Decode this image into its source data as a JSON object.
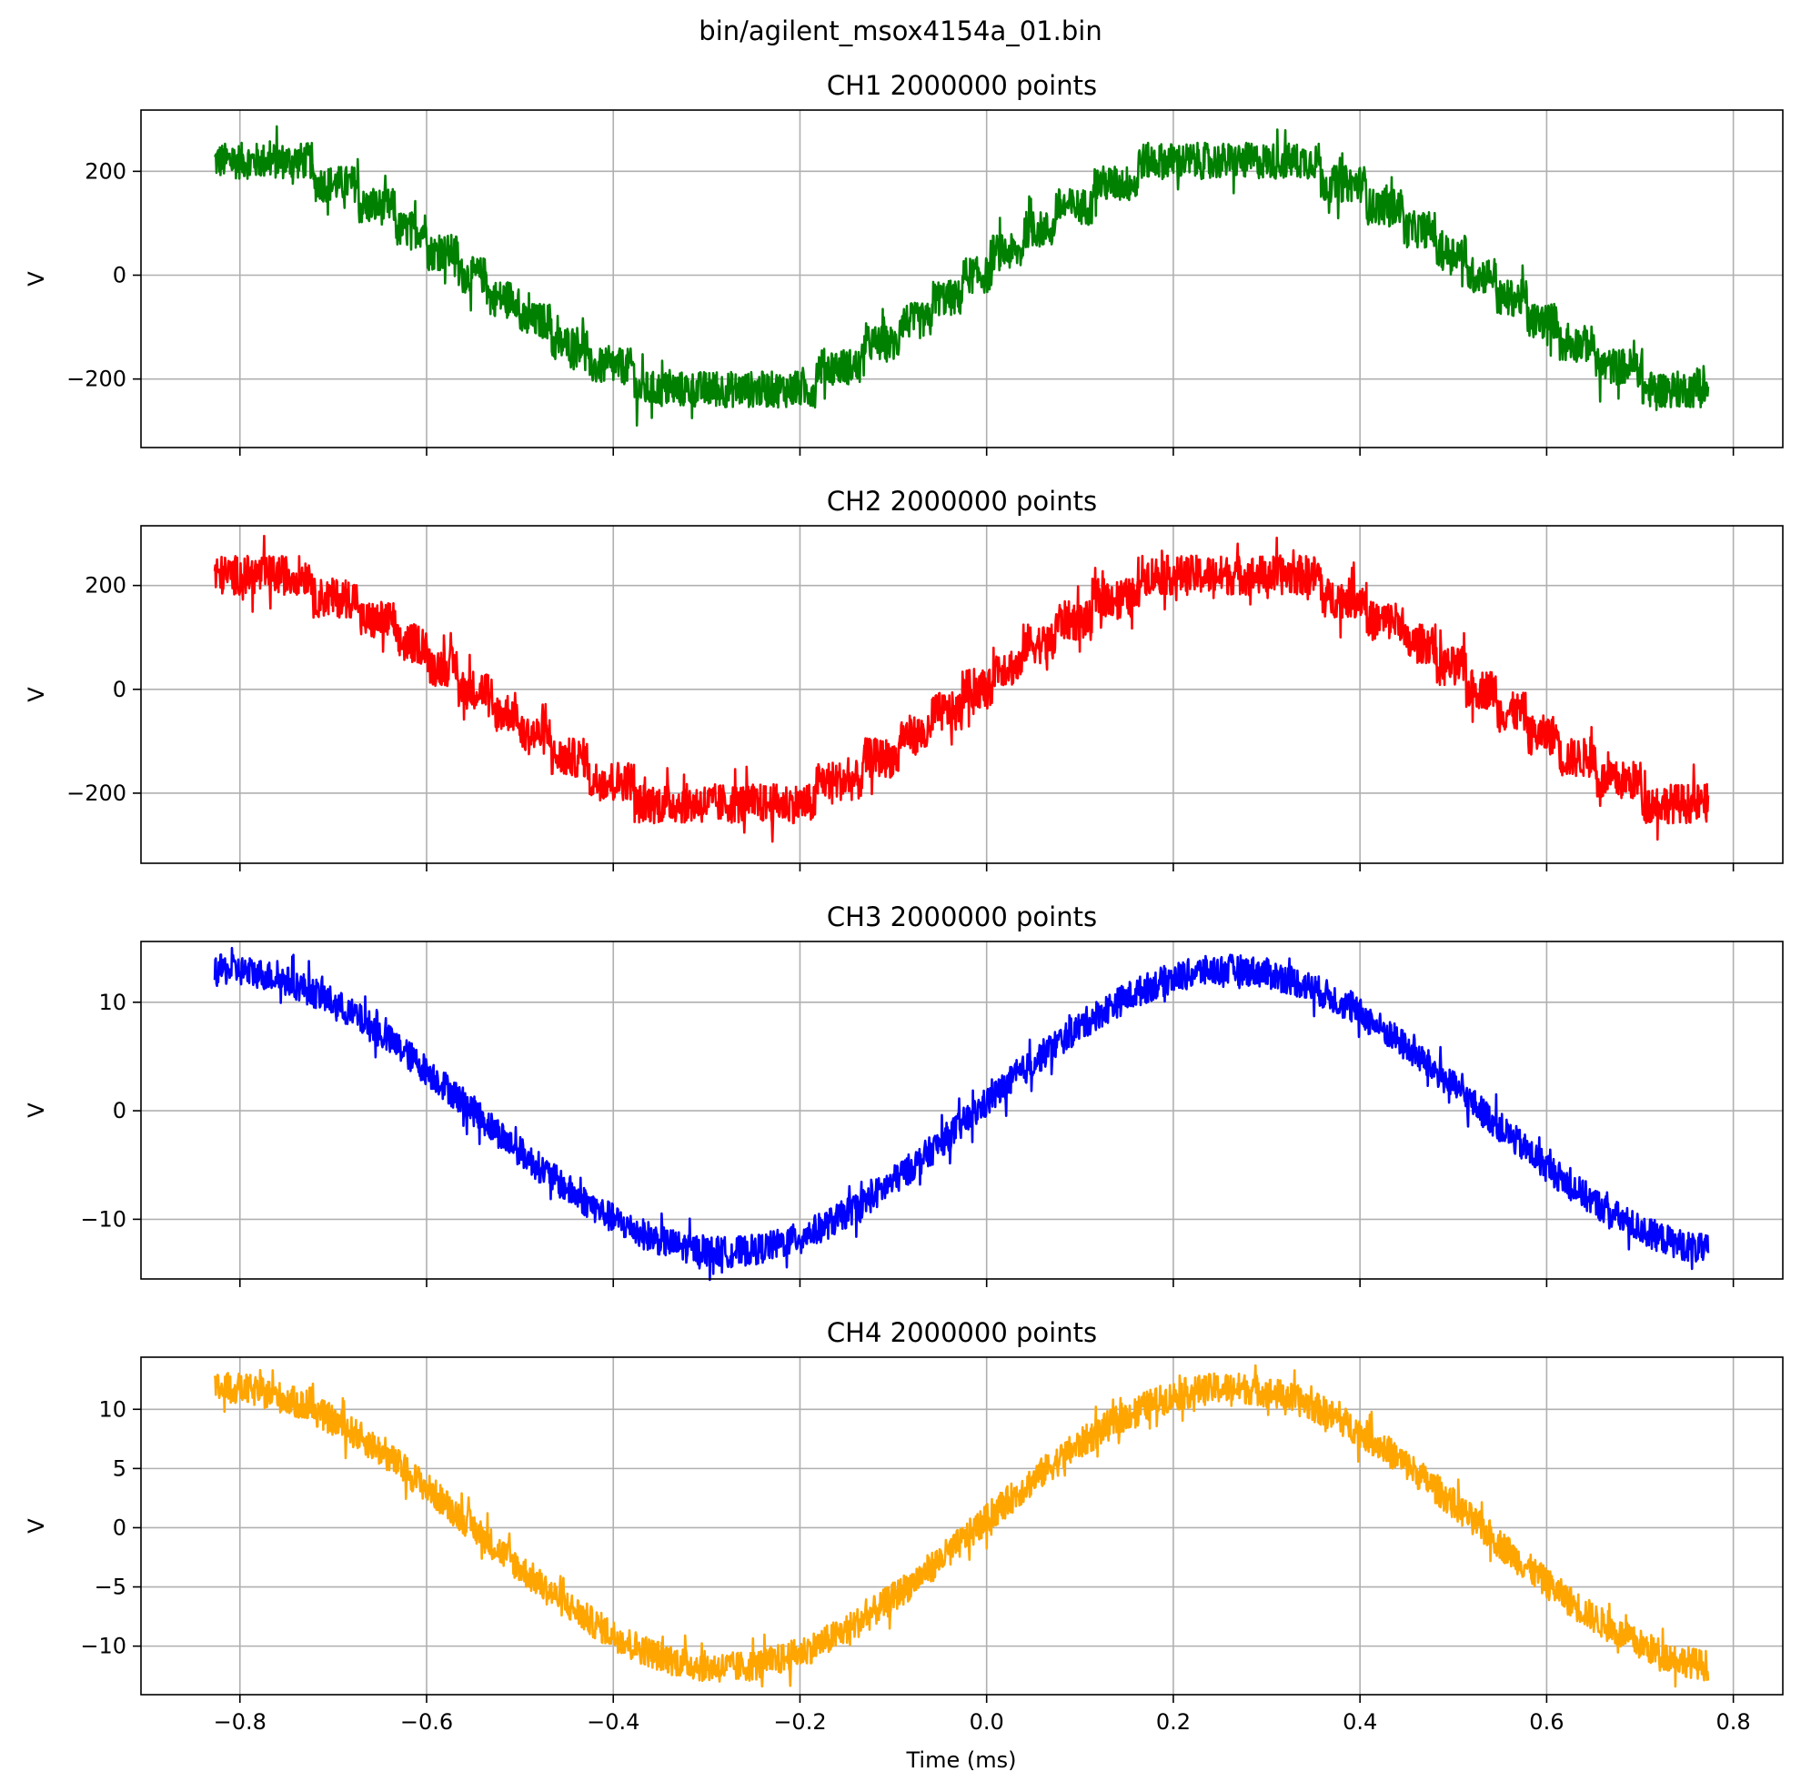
{
  "figure": {
    "suptitle": "bin/agilent_msox4154a_01.bin",
    "xlabel": "Time (ms)"
  },
  "chart_data": [
    {
      "type": "line",
      "title": "CH1  2000000 points",
      "ylabel": "V",
      "color": "#008000",
      "xlim": [
        -0.906,
        0.853
      ],
      "ylim": [
        -332,
        318
      ],
      "xticks": [
        -0.8,
        -0.6,
        -0.4,
        -0.2,
        0.0,
        0.2,
        0.4,
        0.6,
        0.8
      ],
      "xtick_labels": [
        "−0.8",
        "−0.6",
        "−0.4",
        "−0.2",
        "0.0",
        "0.2",
        "0.4",
        "0.6",
        "0.8"
      ],
      "yticks": [
        -200,
        0,
        200
      ],
      "ytick_labels": [
        "−200",
        "0",
        "200"
      ],
      "x_range": [
        -0.827,
        0.773
      ],
      "amplitude": 235,
      "period_ms": 1.08,
      "phase_zero_ms": -0.01,
      "noise": 35,
      "quantization_step": 44
    },
    {
      "type": "line",
      "title": "CH2  2000000 points",
      "ylabel": "V",
      "color": "#ff0000",
      "xlim": [
        -0.906,
        0.853
      ],
      "ylim": [
        -335,
        315
      ],
      "xticks": [
        -0.8,
        -0.6,
        -0.4,
        -0.2,
        0.0,
        0.2,
        0.4,
        0.6,
        0.8
      ],
      "xtick_labels": [
        "−0.8",
        "−0.6",
        "−0.4",
        "−0.2",
        "0.0",
        "0.2",
        "0.4",
        "0.6",
        "0.8"
      ],
      "yticks": [
        -200,
        0,
        200
      ],
      "ytick_labels": [
        "−200",
        "0",
        "200"
      ],
      "x_range": [
        -0.827,
        0.773
      ],
      "amplitude": 235,
      "period_ms": 1.08,
      "phase_zero_ms": -0.01,
      "noise": 38,
      "quantization_step": 44
    },
    {
      "type": "line",
      "title": "CH3  2000000 points",
      "ylabel": "V",
      "color": "#0000ff",
      "xlim": [
        -0.906,
        0.853
      ],
      "ylim": [
        -15.5,
        15.6
      ],
      "xticks": [
        -0.8,
        -0.6,
        -0.4,
        -0.2,
        0.0,
        0.2,
        0.4,
        0.6,
        0.8
      ],
      "xtick_labels": [
        "−0.8",
        "−0.6",
        "−0.4",
        "−0.2",
        "0.0",
        "0.2",
        "0.4",
        "0.6",
        "0.8"
      ],
      "yticks": [
        -10,
        0,
        10
      ],
      "ytick_labels": [
        "−10",
        "0",
        "10"
      ],
      "x_range": [
        -0.827,
        0.773
      ],
      "amplitude": 13,
      "period_ms": 1.08,
      "phase_zero_ms": -0.01,
      "noise": 1.4,
      "quantization_step": 0
    },
    {
      "type": "line",
      "title": "CH4  2000000 points",
      "ylabel": "V",
      "color": "#ffa500",
      "xlim": [
        -0.906,
        0.853
      ],
      "ylim": [
        -14.1,
        14.4
      ],
      "xticks": [
        -0.8,
        -0.6,
        -0.4,
        -0.2,
        0.0,
        0.2,
        0.4,
        0.6,
        0.8
      ],
      "xtick_labels": [
        "−0.8",
        "−0.6",
        "−0.4",
        "−0.2",
        "0.0",
        "0.2",
        "0.4",
        "0.6",
        "0.8"
      ],
      "yticks": [
        -10,
        -5,
        0,
        5,
        10
      ],
      "ytick_labels": [
        "−10",
        "−5",
        "0",
        "5",
        "10"
      ],
      "x_range": [
        -0.827,
        0.773
      ],
      "amplitude": 11.8,
      "period_ms": 1.08,
      "phase_zero_ms": -0.01,
      "noise": 1.3,
      "quantization_step": 0
    }
  ]
}
